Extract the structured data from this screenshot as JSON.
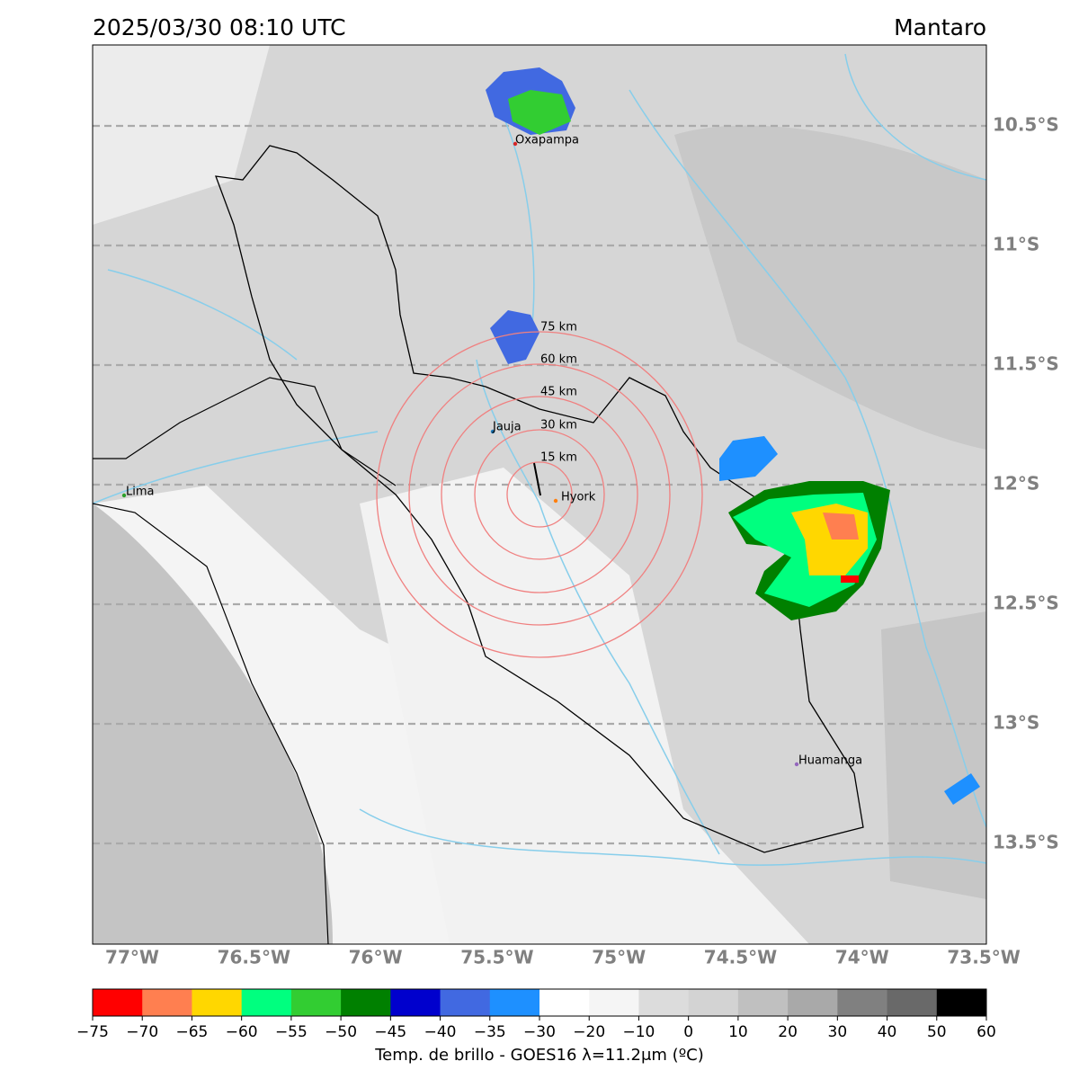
{
  "header": {
    "datetime": "2025/03/30 08:10 UTC",
    "region": "Mantaro"
  },
  "map": {
    "lat_labels": [
      "10.5°S",
      "11°S",
      "11.5°S",
      "12°S",
      "12.5°S",
      "13°S",
      "13.5°S"
    ],
    "lon_labels": [
      "77°W",
      "76.5°W",
      "76°W",
      "75.5°W",
      "75°W",
      "74.5°W",
      "74°W",
      "73.5°W"
    ],
    "cities": [
      {
        "name": "Oxapampa",
        "color": "#d62728"
      },
      {
        "name": "Jauja",
        "color": "#1f77b4"
      },
      {
        "name": "Hyork",
        "color": "#ff7f0e"
      },
      {
        "name": "Lima",
        "color": "#2ca02c"
      },
      {
        "name": "Huamanga",
        "color": "#9467bd"
      }
    ],
    "range_rings": [
      "15 km",
      "30 km",
      "45 km",
      "60 km",
      "75 km"
    ]
  },
  "colorbar": {
    "colors": [
      "#ff0000",
      "#ff7f50",
      "#ffd700",
      "#00ff7f",
      "#32cd32",
      "#008000",
      "#0000cd",
      "#4169e1",
      "#1e90ff",
      "#ffffff",
      "#f5f5f5",
      "#dcdcdc",
      "#d3d3d3",
      "#c0c0c0",
      "#a9a9a9",
      "#808080",
      "#696969",
      "#000000"
    ],
    "ticks": [
      "−75",
      "−70",
      "−65",
      "−60",
      "−55",
      "−50",
      "−45",
      "−40",
      "−35",
      "−30",
      "−20",
      "−10",
      "0",
      "10",
      "20",
      "30",
      "40",
      "50",
      "60"
    ],
    "label": "Temp. de brillo - GOES16 λ=11.2μm (ºC)"
  }
}
